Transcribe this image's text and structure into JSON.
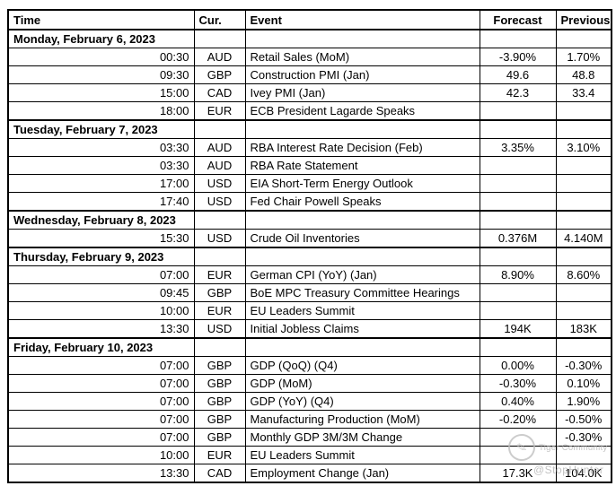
{
  "columns": [
    "Time",
    "Cur.",
    "Event",
    "Forecast",
    "Previous"
  ],
  "days": [
    {
      "label": "Monday, February 6, 2023",
      "rows": [
        {
          "time": "00:30",
          "cur": "AUD",
          "event": "Retail Sales (MoM)",
          "forecast": "-3.90%",
          "previous": "1.70%"
        },
        {
          "time": "09:30",
          "cur": "GBP",
          "event": "Construction PMI (Jan)",
          "forecast": "49.6",
          "previous": "48.8"
        },
        {
          "time": "15:00",
          "cur": "CAD",
          "event": "Ivey PMI (Jan)",
          "forecast": "42.3",
          "previous": "33.4"
        },
        {
          "time": "18:00",
          "cur": "EUR",
          "event": "ECB President Lagarde Speaks",
          "forecast": "",
          "previous": ""
        }
      ]
    },
    {
      "label": "Tuesday, February 7, 2023",
      "rows": [
        {
          "time": "03:30",
          "cur": "AUD",
          "event": "RBA Interest Rate Decision (Feb)",
          "forecast": "3.35%",
          "previous": "3.10%"
        },
        {
          "time": "03:30",
          "cur": "AUD",
          "event": "RBA Rate Statement",
          "forecast": "",
          "previous": ""
        },
        {
          "time": "17:00",
          "cur": "USD",
          "event": "EIA Short-Term Energy Outlook",
          "forecast": "",
          "previous": ""
        },
        {
          "time": "17:40",
          "cur": "USD",
          "event": "Fed Chair Powell Speaks",
          "forecast": "",
          "previous": ""
        }
      ]
    },
    {
      "label": "Wednesday, February 8, 2023",
      "rows": [
        {
          "time": "15:30",
          "cur": "USD",
          "event": "Crude Oil Inventories",
          "forecast": "0.376M",
          "previous": "4.140M"
        }
      ]
    },
    {
      "label": "Thursday, February 9, 2023",
      "rows": [
        {
          "time": "07:00",
          "cur": "EUR",
          "event": "German CPI (YoY) (Jan)",
          "forecast": "8.90%",
          "previous": "8.60%"
        },
        {
          "time": "09:45",
          "cur": "GBP",
          "event": "BoE MPC Treasury Committee Hearings",
          "forecast": "",
          "previous": ""
        },
        {
          "time": "10:00",
          "cur": "EUR",
          "event": "EU Leaders Summit",
          "forecast": "",
          "previous": ""
        },
        {
          "time": "13:30",
          "cur": "USD",
          "event": "Initial Jobless Claims",
          "forecast": "194K",
          "previous": "183K"
        }
      ]
    },
    {
      "label": "Friday, February 10, 2023",
      "rows": [
        {
          "time": "07:00",
          "cur": "GBP",
          "event": "GDP (QoQ) (Q4)",
          "forecast": "0.00%",
          "previous": "-0.30%"
        },
        {
          "time": "07:00",
          "cur": "GBP",
          "event": "GDP (MoM)",
          "forecast": "-0.30%",
          "previous": "0.10%"
        },
        {
          "time": "07:00",
          "cur": "GBP",
          "event": "GDP (YoY) (Q4)",
          "forecast": "0.40%",
          "previous": "1.90%"
        },
        {
          "time": "07:00",
          "cur": "GBP",
          "event": "Manufacturing Production (MoM)",
          "forecast": "-0.20%",
          "previous": "-0.50%"
        },
        {
          "time": "07:00",
          "cur": "GBP",
          "event": "Monthly GDP 3M/3M Change",
          "forecast": "",
          "previous": "-0.30%"
        },
        {
          "time": "10:00",
          "cur": "EUR",
          "event": "EU Leaders Summit",
          "forecast": "",
          "previous": ""
        },
        {
          "time": "13:30",
          "cur": "CAD",
          "event": "Employment Change (Jan)",
          "forecast": "17.3K",
          "previous": "104.0K"
        }
      ]
    }
  ],
  "watermark": {
    "brand": "Tiger Community",
    "handle": "@StopHunter",
    "logo": "quill-icon"
  },
  "colors": {
    "border": "#000000",
    "text": "#000000",
    "background": "#ffffff",
    "watermark_gray": "#aeaeae"
  }
}
